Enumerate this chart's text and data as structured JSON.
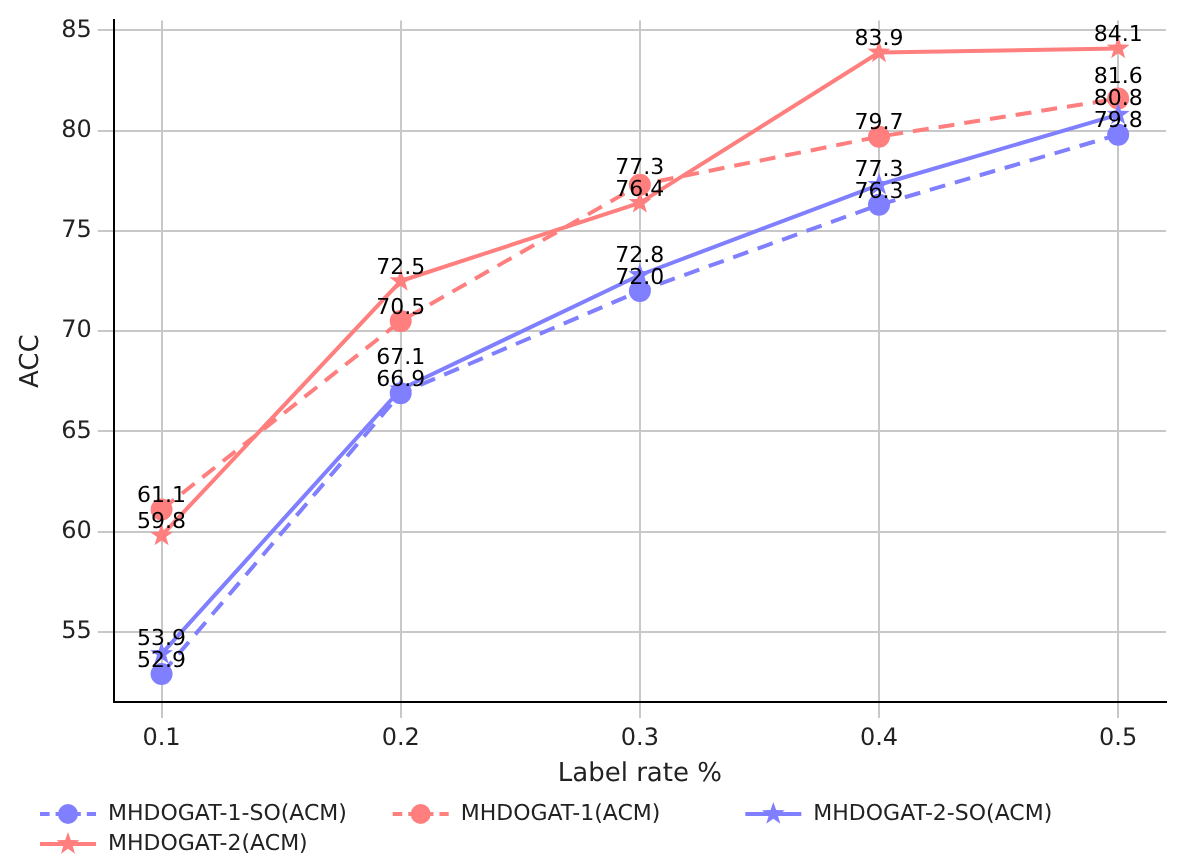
{
  "chart_data": {
    "type": "line",
    "xlabel": "Label rate %",
    "ylabel": "ACC",
    "x": [
      0.1,
      0.2,
      0.3,
      0.4,
      0.5
    ],
    "xlim": [
      0.08,
      0.52
    ],
    "xticks": [
      0.1,
      0.2,
      0.3,
      0.4,
      0.5
    ],
    "ylim": [
      51.5,
      85.5
    ],
    "yticks": [
      55,
      60,
      65,
      70,
      75,
      80,
      85
    ],
    "grid": true,
    "legend": "bottom",
    "data_labels": true,
    "series": [
      {
        "name": "MHDOGAT-1-SO(ACM)",
        "color": "#7f7fff",
        "marker": "circle",
        "line_style": "dashed",
        "values": [
          52.9,
          66.9,
          72.0,
          76.3,
          79.8
        ],
        "value_labels": [
          "52.9",
          "66.9",
          "72.0",
          "76.3",
          "79.8"
        ]
      },
      {
        "name": "MHDOGAT-1(ACM)",
        "color": "#ff7f7f",
        "marker": "circle",
        "line_style": "dashed",
        "values": [
          61.1,
          70.5,
          77.3,
          79.7,
          81.6
        ]
      },
      {
        "name": "MHDOGAT-2-SO(ACM)",
        "color": "#7f7fff",
        "marker": "star",
        "line_style": "solid",
        "values": [
          53.9,
          67.1,
          72.8,
          77.3,
          80.8
        ]
      },
      {
        "name": "MHDOGAT-2(ACM)",
        "color": "#ff7f7f",
        "marker": "star",
        "line_style": "solid",
        "values": [
          59.8,
          72.5,
          76.4,
          83.9,
          84.1
        ]
      }
    ]
  }
}
